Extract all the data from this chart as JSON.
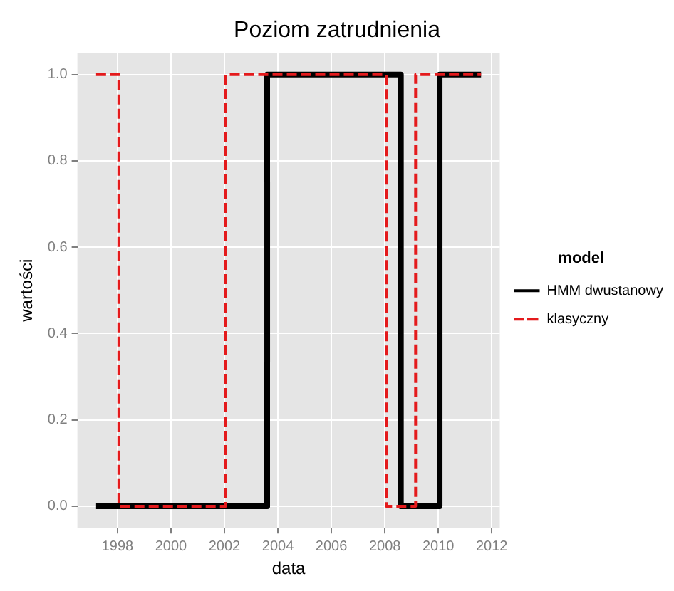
{
  "chart_data": {
    "type": "step",
    "title": "Poziom zatrudnienia",
    "xlabel": "data",
    "ylabel": "wartości",
    "legend_title": "model",
    "legend": "right",
    "grid": true,
    "marker": "none",
    "xlim": [
      1996.5,
      2012.3
    ],
    "xticks": [
      1998,
      2000,
      2002,
      2004,
      2006,
      2008,
      2010,
      2012
    ],
    "ylim": [
      -0.05,
      1.05
    ],
    "yticks": [
      {
        "value": 0,
        "label": "0.0"
      },
      {
        "value": 0.2,
        "label": "0.2"
      },
      {
        "value": 0.4,
        "label": "0.4"
      },
      {
        "value": 0.6,
        "label": "0.6"
      },
      {
        "value": 0.8,
        "label": "0.8"
      },
      {
        "value": 1,
        "label": "1.0"
      }
    ],
    "series": [
      {
        "name": "HMM dwustanowy",
        "color": "#000000",
        "line_style": "solid",
        "x": [
          1997.2,
          2003.6,
          2008.6,
          2010.05,
          2011.6
        ],
        "values": [
          0,
          1,
          0,
          1,
          1
        ]
      },
      {
        "name": "klasyczny",
        "color": "#e41a1c",
        "line_style": "dashed",
        "x": [
          1997.2,
          1998.05,
          2002.05,
          2008.05,
          2009.15,
          2011.6
        ],
        "values": [
          1,
          0,
          1,
          0,
          1,
          1
        ]
      }
    ]
  }
}
